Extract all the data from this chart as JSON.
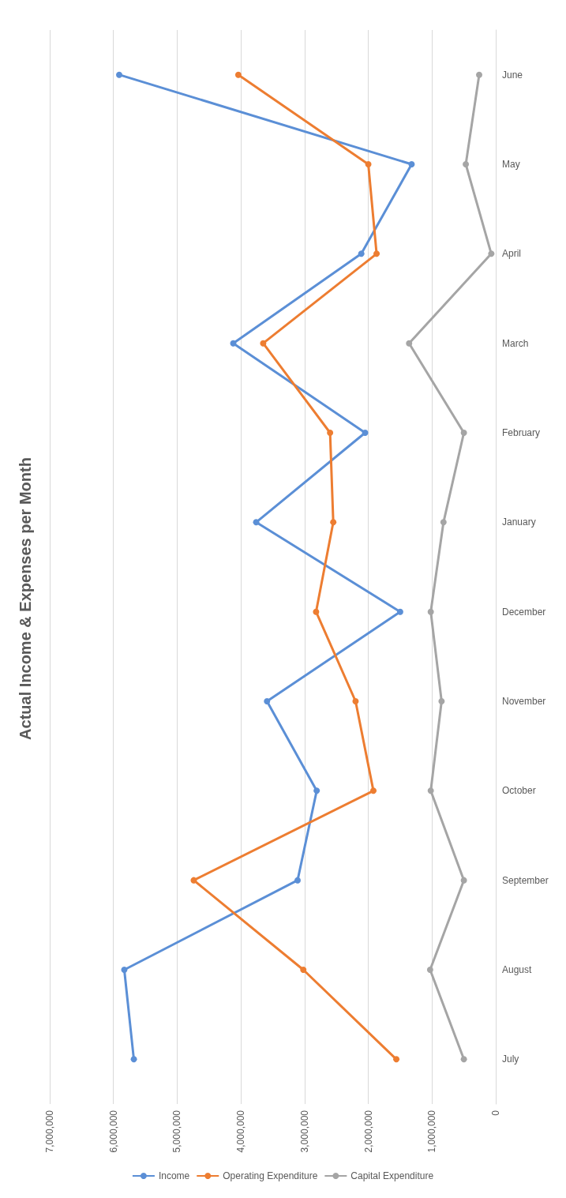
{
  "chart_data": {
    "type": "line",
    "title": "Actual Income & Expenses per Month",
    "categories": [
      "June",
      "May",
      "April",
      "March",
      "February",
      "January",
      "December",
      "November",
      "October",
      "September",
      "August",
      "July"
    ],
    "series": [
      {
        "name": "Income",
        "color": "#5b8fd6",
        "values": [
          5910000,
          1320000,
          2110000,
          4120000,
          2050000,
          3760000,
          1500000,
          3590000,
          2810000,
          3110000,
          5830000,
          5680000
        ]
      },
      {
        "name": "Operating Expenditure",
        "color": "#ed7d31",
        "values": [
          4040000,
          2000000,
          1870000,
          3650000,
          2600000,
          2550000,
          2820000,
          2200000,
          1920000,
          4740000,
          3020000,
          1560000
        ]
      },
      {
        "name": "Capital Expenditure",
        "color": "#a5a5a5",
        "values": [
          260000,
          470000,
          70000,
          1360000,
          500000,
          820000,
          1020000,
          850000,
          1020000,
          500000,
          1030000,
          500000
        ]
      }
    ],
    "orientation": "horizontal",
    "xlim": [
      7000000,
      0
    ],
    "xticks": [
      {
        "value": 0,
        "label": "0"
      },
      {
        "value": 1000000,
        "label": "1,000,000"
      },
      {
        "value": 2000000,
        "label": "2,000,000"
      },
      {
        "value": 3000000,
        "label": "3,000,000"
      },
      {
        "value": 4000000,
        "label": "4,000,000"
      },
      {
        "value": 5000000,
        "label": "5,000,000"
      },
      {
        "value": 6000000,
        "label": "6,000,000"
      },
      {
        "value": 7000000,
        "label": "7,000,000"
      }
    ],
    "grid": "x",
    "legend": "bottom",
    "marker": "circle",
    "line_style": "solid"
  }
}
